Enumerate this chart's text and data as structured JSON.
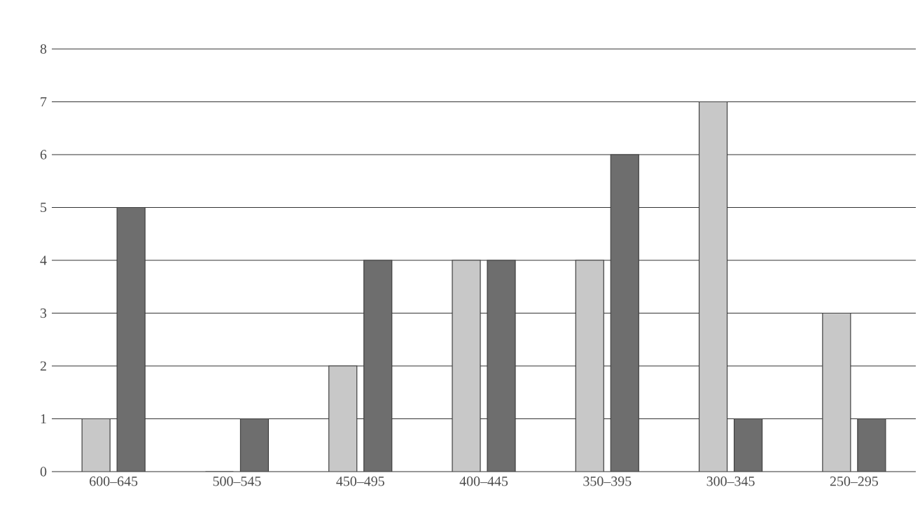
{
  "chart_data": {
    "type": "bar",
    "categories": [
      "600–645",
      "500–545",
      "450–495",
      "400–445",
      "350–395",
      "300–345",
      "250–295"
    ],
    "series": [
      {
        "color": "#c8c8c8",
        "values": [
          1,
          0,
          2,
          4,
          4,
          7,
          3
        ]
      },
      {
        "color": "#6e6e6e",
        "values": [
          5,
          1,
          4,
          4,
          6,
          1,
          1
        ]
      }
    ],
    "ylim": [
      0,
      8
    ],
    "yticks": [
      0,
      1,
      2,
      3,
      4,
      5,
      6,
      7,
      8
    ],
    "grid": "y"
  }
}
